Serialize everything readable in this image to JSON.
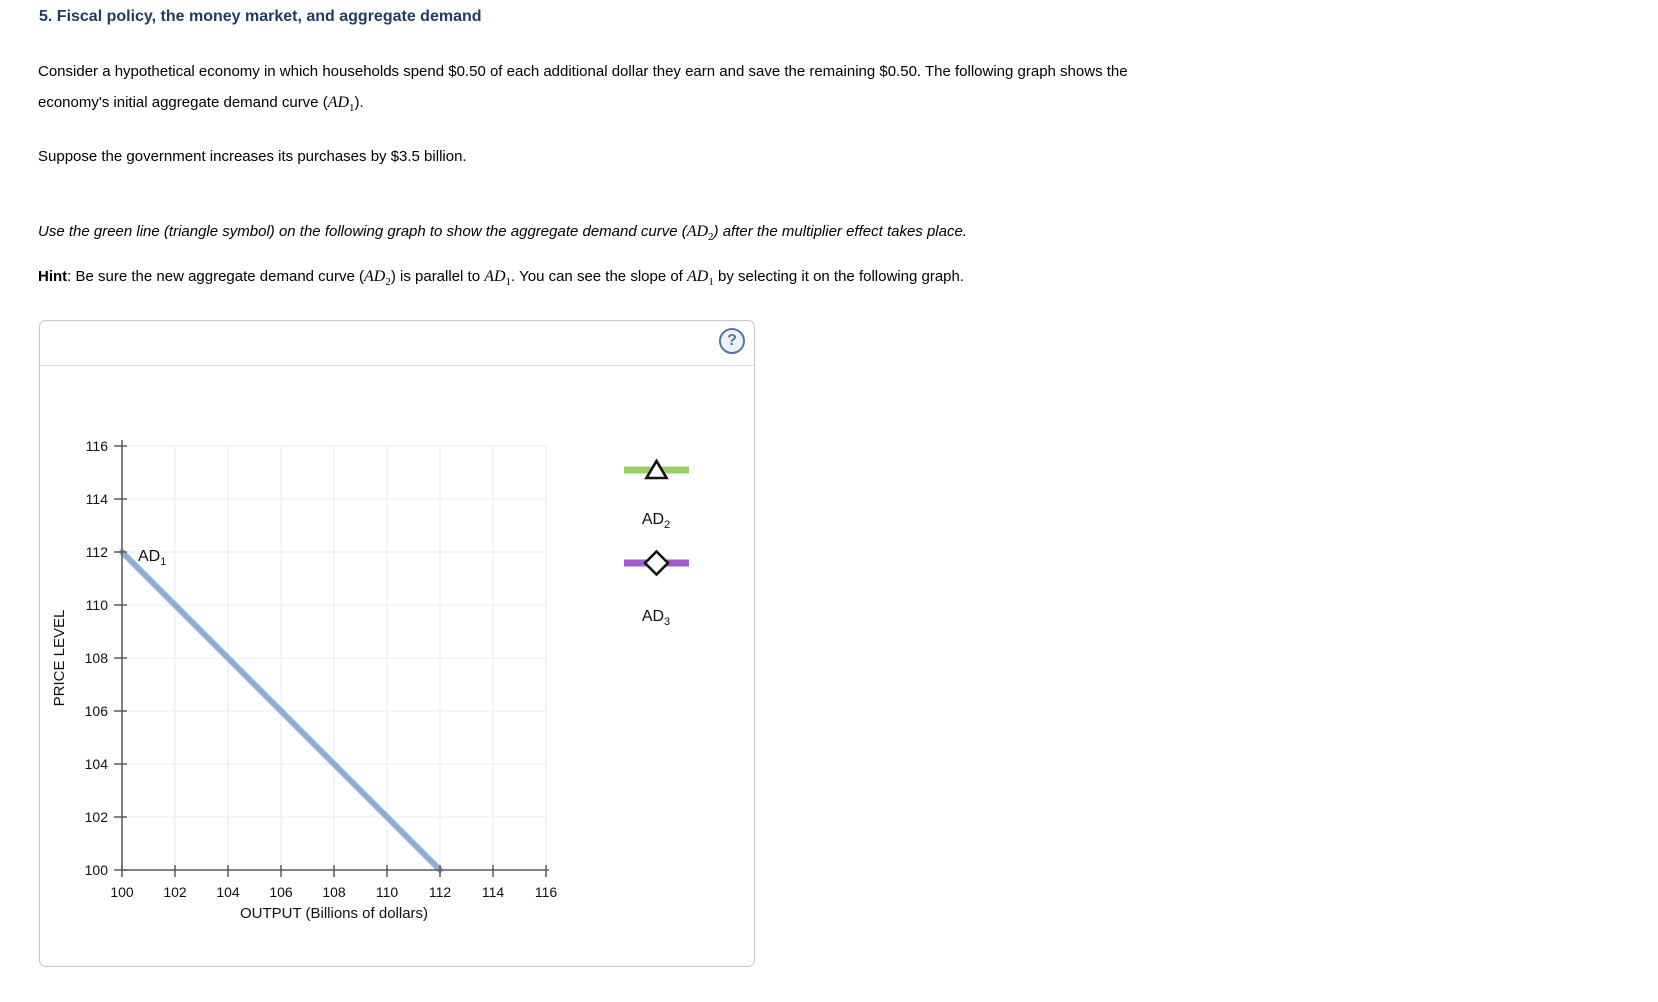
{
  "page": {
    "title": "5. Fiscal policy, the money market, and aggregate demand"
  },
  "intro": {
    "pre": "Consider a hypothetical economy in which households spend $0.50 of each additional dollar they earn and save the remaining $0.50. The following graph shows the economy's initial aggregate demand curve (",
    "math_base": "AD",
    "math_sub": "1",
    "post": ")."
  },
  "setup": {
    "text": "Suppose the government increases its purchases by $3.5 billion."
  },
  "instruction": {
    "pre": "Use the green line (triangle symbol) on the following graph to show the aggregate demand curve (",
    "math_base": "AD",
    "math_sub": "2",
    "post": ") after the multiplier effect takes place."
  },
  "hint": {
    "label": "Hint",
    "seg1": ": Be sure the new aggregate demand curve (",
    "m1_base": "AD",
    "m1_sub": "2",
    "seg2": ") is parallel to ",
    "m2_base": "AD",
    "m2_sub": "1",
    "seg3": ". You can see the slope of ",
    "m3_base": "AD",
    "m3_sub": "1",
    "seg4": " by selecting it on the following graph."
  },
  "panel": {
    "help_label": "?"
  },
  "chart_data": {
    "type": "line",
    "title": "",
    "xlabel": "OUTPUT (Billions of dollars)",
    "ylabel": "PRICE LEVEL",
    "xlim": [
      100,
      116
    ],
    "ylim": [
      100,
      116
    ],
    "x_ticks": [
      100,
      102,
      104,
      106,
      108,
      110,
      112,
      114,
      116
    ],
    "y_ticks": [
      100,
      102,
      104,
      106,
      108,
      110,
      112,
      114,
      116
    ],
    "grid": true,
    "legend_position": "right-of-plot",
    "series": [
      {
        "name": "AD1",
        "label_base": "AD",
        "label_sub": "1",
        "color": "#92aed8",
        "symbol": "none",
        "shown_on_plot": true,
        "points": [
          [
            100,
            112
          ],
          [
            112,
            100
          ]
        ]
      },
      {
        "name": "AD2",
        "label_base": "AD",
        "label_sub": "2",
        "color": "#9ad167",
        "symbol": "triangle",
        "shown_on_plot": false,
        "points": []
      },
      {
        "name": "AD3",
        "label_base": "AD",
        "label_sub": "3",
        "color": "#a05ecd",
        "symbol": "diamond",
        "shown_on_plot": false,
        "points": []
      }
    ]
  },
  "colors": {
    "title_navy": "#1e3c64",
    "axis": "#5a5a5a",
    "gridline": "#ebebeb",
    "tick_label": "#111111",
    "ad1_blue": "#92aed8",
    "ad2_green": "#9ad167",
    "ad3_purple": "#a05ecd",
    "symbol_stroke": "#121212",
    "panel_border": "#c6c6c6",
    "help_icon_blue": "#54769c"
  }
}
